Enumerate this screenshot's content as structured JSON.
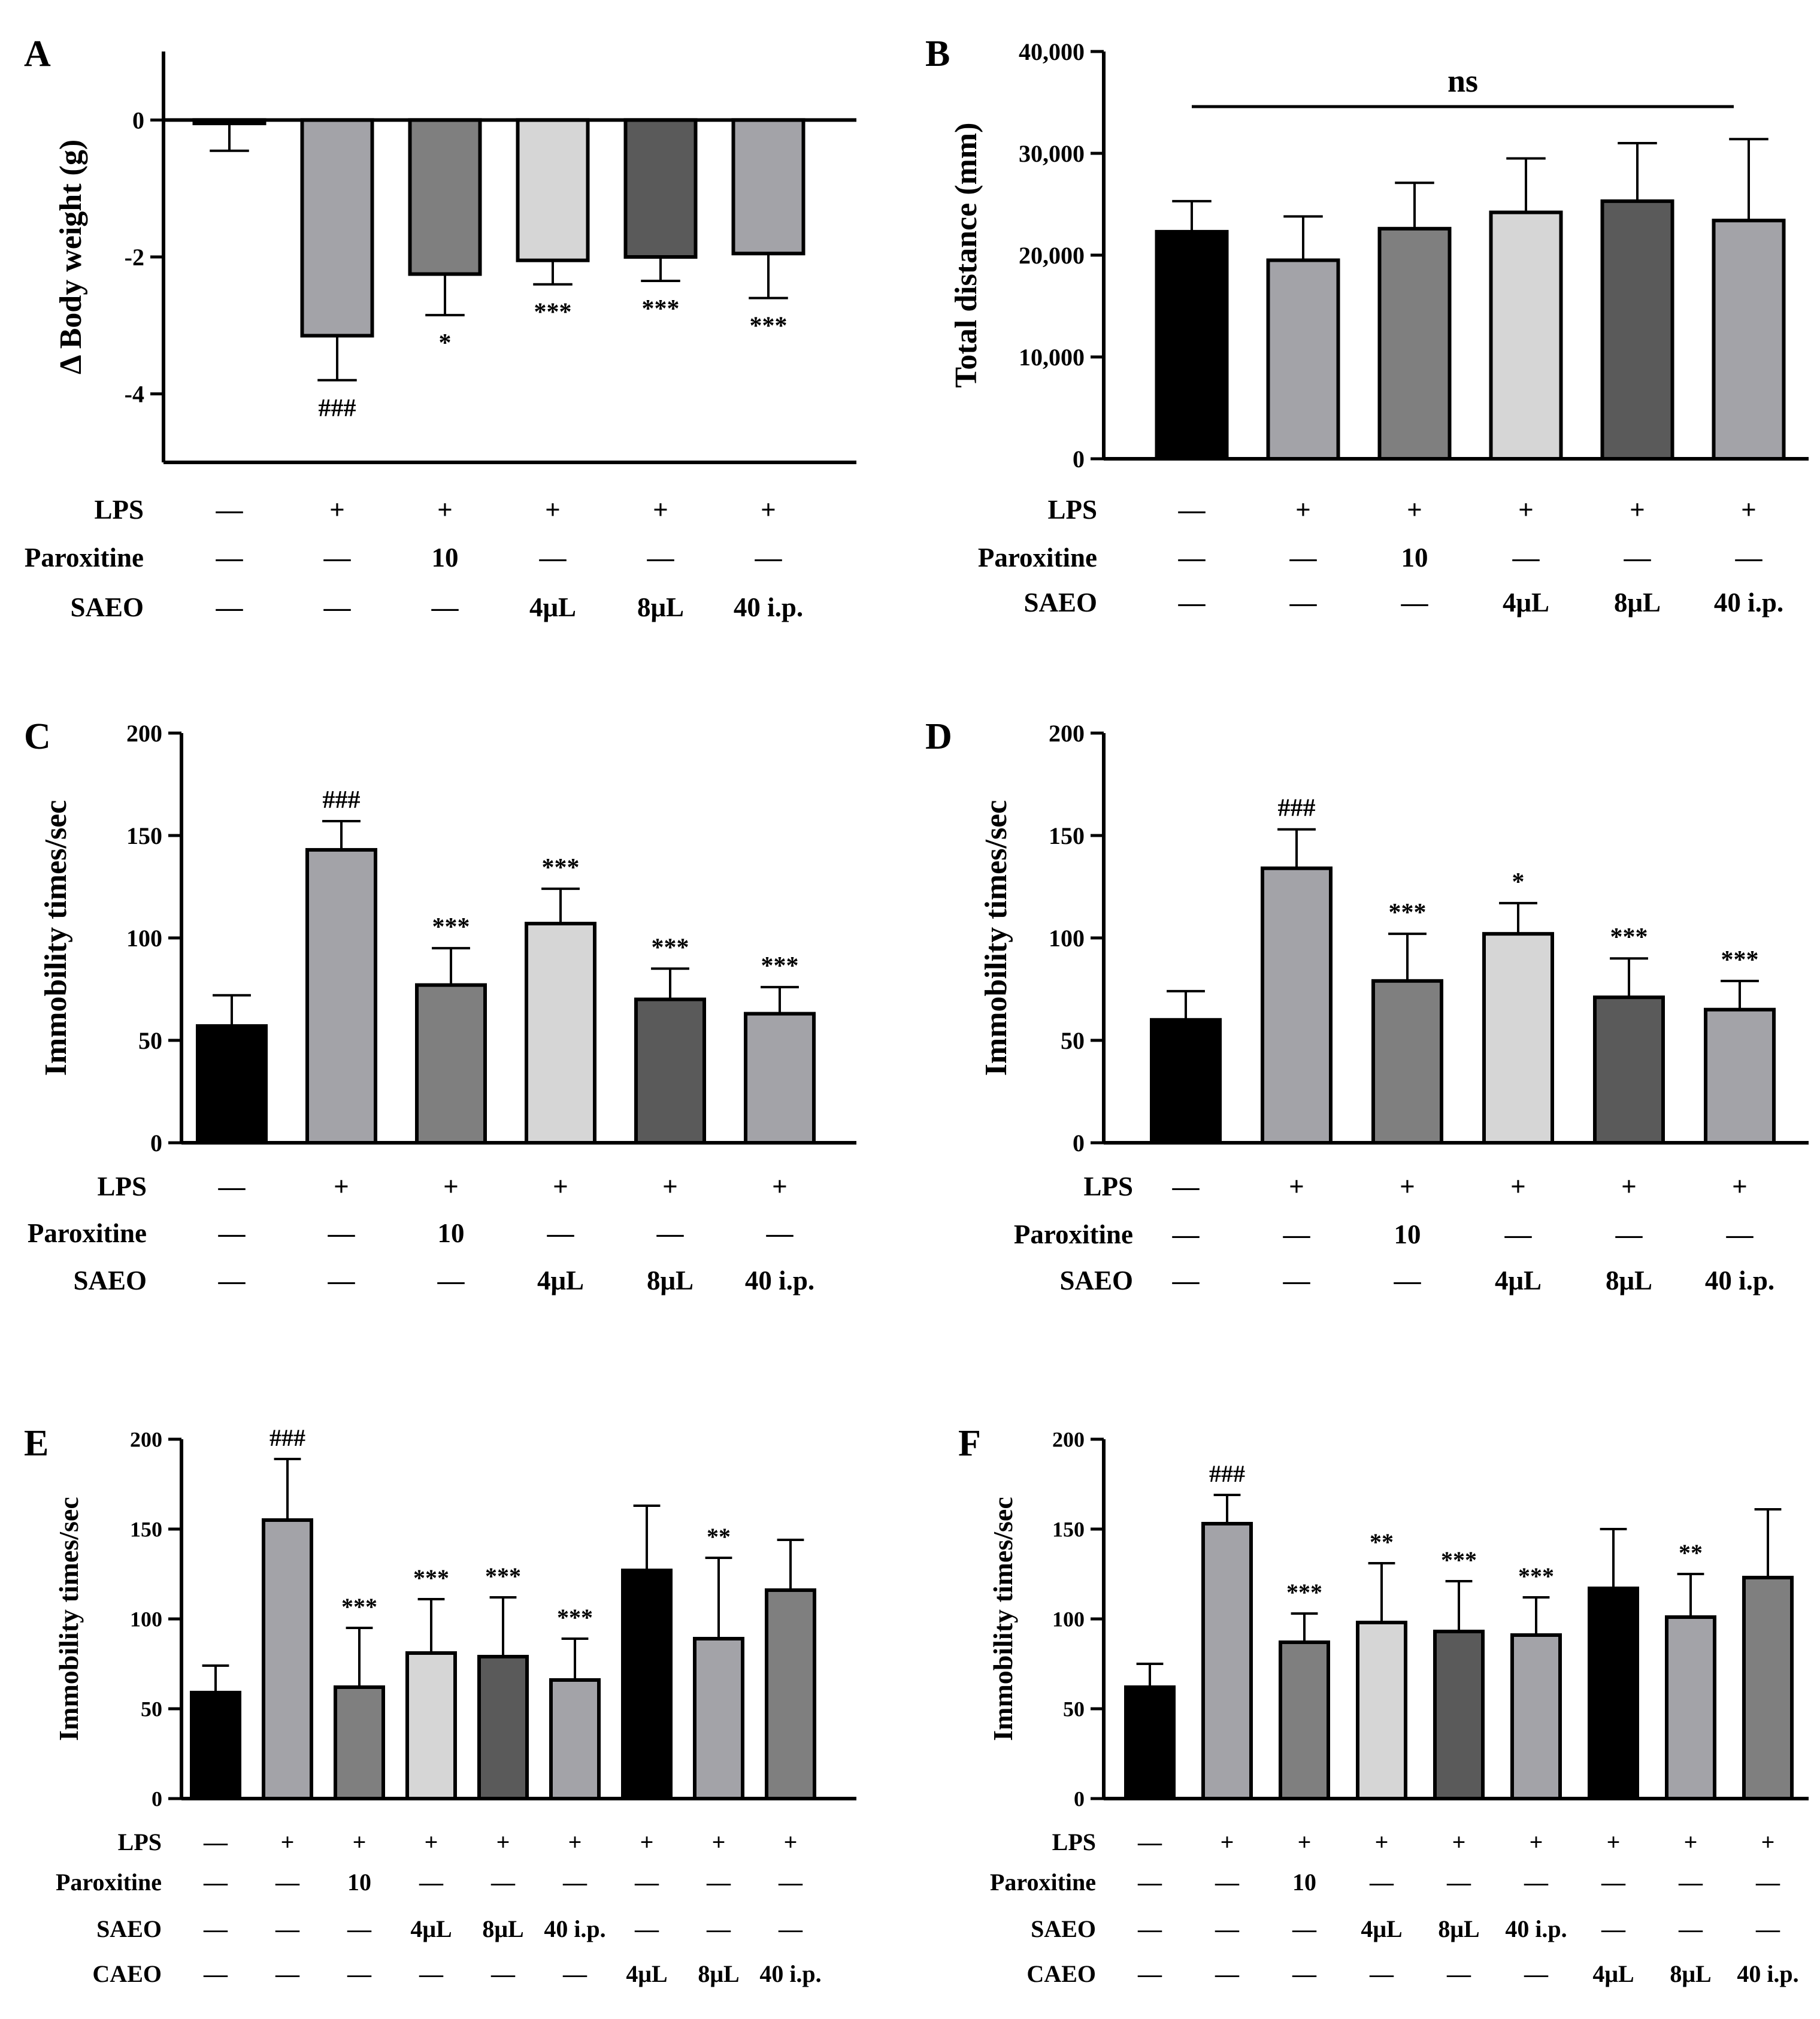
{
  "chart_data": [
    {
      "panel": "A",
      "type": "bar",
      "ylabel": "Δ Body weight (g)",
      "ylim": [
        -5,
        1
      ],
      "yticks": [
        0,
        -2,
        -4
      ],
      "ytick_labels": [
        "0",
        "-2",
        "-4"
      ],
      "values": [
        -0.05,
        -3.15,
        -2.25,
        -2.05,
        -2.0,
        -1.95
      ],
      "errors": [
        0.4,
        0.65,
        0.6,
        0.35,
        0.35,
        0.65
      ],
      "bar_colors": [
        "#000000",
        "#a3a3a8",
        "#7f7f7f",
        "#d6d6d6",
        "#5a5a5a",
        "#a3a3a8"
      ],
      "annotations": [
        "",
        "###",
        "*",
        "***",
        "***",
        "***"
      ],
      "rows": [
        {
          "label": "LPS",
          "cells": [
            "—",
            "+",
            "+",
            "+",
            "+",
            "+"
          ]
        },
        {
          "label": "Paroxitine",
          "cells": [
            "—",
            "—",
            "10",
            "—",
            "—",
            "—"
          ]
        },
        {
          "label": "SAEO",
          "cells": [
            "—",
            "—",
            "—",
            "4μL",
            "8μL",
            "40 i.p."
          ]
        }
      ]
    },
    {
      "panel": "B",
      "type": "bar",
      "ylabel": "Total distance (mm)",
      "ylim": [
        0,
        40000
      ],
      "yticks": [
        0,
        10000,
        20000,
        30000,
        40000
      ],
      "ytick_labels": [
        "0",
        "10,000",
        "20,000",
        "30,000",
        "40,000"
      ],
      "values": [
        22300,
        19500,
        22600,
        24200,
        25300,
        23400
      ],
      "errors": [
        3000,
        4300,
        4500,
        5300,
        5700,
        8000
      ],
      "bar_colors": [
        "#000000",
        "#a3a3a8",
        "#7f7f7f",
        "#d6d6d6",
        "#5a5a5a",
        "#a3a3a8"
      ],
      "annotations": [
        "",
        "",
        "",
        "",
        "",
        ""
      ],
      "bracket_label": "ns",
      "rows": [
        {
          "label": "LPS",
          "cells": [
            "—",
            "+",
            "+",
            "+",
            "+",
            "+"
          ]
        },
        {
          "label": "Paroxitine",
          "cells": [
            "—",
            "—",
            "10",
            "—",
            "—",
            "—"
          ]
        },
        {
          "label": "SAEO",
          "cells": [
            "—",
            "—",
            "—",
            "4μL",
            "8μL",
            "40 i.p."
          ]
        }
      ]
    },
    {
      "panel": "C",
      "type": "bar",
      "ylabel": "Immobility times/sec",
      "ylim": [
        0,
        200
      ],
      "yticks": [
        0,
        50,
        100,
        150,
        200
      ],
      "ytick_labels": [
        "0",
        "50",
        "100",
        "150",
        "200"
      ],
      "values": [
        57,
        143,
        77,
        107,
        70,
        63
      ],
      "errors": [
        15,
        14,
        18,
        17,
        15,
        13
      ],
      "bar_colors": [
        "#000000",
        "#a3a3a8",
        "#7f7f7f",
        "#d6d6d6",
        "#5a5a5a",
        "#a3a3a8"
      ],
      "annotations": [
        "",
        "###",
        "***",
        "***",
        "***",
        "***"
      ],
      "rows": [
        {
          "label": "LPS",
          "cells": [
            "—",
            "+",
            "+",
            "+",
            "+",
            "+"
          ]
        },
        {
          "label": "Paroxitine",
          "cells": [
            "—",
            "—",
            "10",
            "—",
            "—",
            "—"
          ]
        },
        {
          "label": "SAEO",
          "cells": [
            "—",
            "—",
            "—",
            "4μL",
            "8μL",
            "40 i.p."
          ]
        }
      ]
    },
    {
      "panel": "D",
      "type": "bar",
      "ylabel": "Immobility times/sec",
      "ylim": [
        0,
        200
      ],
      "yticks": [
        0,
        50,
        100,
        150,
        200
      ],
      "ytick_labels": [
        "0",
        "50",
        "100",
        "150",
        "200"
      ],
      "values": [
        60,
        134,
        79,
        102,
        71,
        65
      ],
      "errors": [
        14,
        19,
        23,
        15,
        19,
        14
      ],
      "bar_colors": [
        "#000000",
        "#a3a3a8",
        "#7f7f7f",
        "#d6d6d6",
        "#5a5a5a",
        "#a3a3a8"
      ],
      "annotations": [
        "",
        "###",
        "***",
        "*",
        "***",
        "***"
      ],
      "rows": [
        {
          "label": "LPS",
          "cells": [
            "—",
            "+",
            "+",
            "+",
            "+",
            "+"
          ]
        },
        {
          "label": "Paroxitine",
          "cells": [
            "—",
            "—",
            "10",
            "—",
            "—",
            "—"
          ]
        },
        {
          "label": "SAEO",
          "cells": [
            "—",
            "—",
            "—",
            "4μL",
            "8μL",
            "40 i.p."
          ]
        }
      ]
    },
    {
      "panel": "E",
      "type": "bar",
      "ylabel": "Immobility times/sec",
      "ylim": [
        0,
        200
      ],
      "yticks": [
        0,
        50,
        100,
        150,
        200
      ],
      "ytick_labels": [
        "0",
        "50",
        "100",
        "150",
        "200"
      ],
      "values": [
        59,
        155,
        62,
        81,
        79,
        66,
        127,
        89,
        116
      ],
      "errors": [
        15,
        34,
        33,
        30,
        33,
        23,
        36,
        45,
        28
      ],
      "bar_colors": [
        "#000000",
        "#a3a3a8",
        "#7f7f7f",
        "#d6d6d6",
        "#5a5a5a",
        "#a3a3a8",
        "#000000",
        "#a3a3a8",
        "#7f7f7f"
      ],
      "annotations": [
        "",
        "###",
        "***",
        "***",
        "***",
        "***",
        "",
        "**",
        ""
      ],
      "rows": [
        {
          "label": "LPS",
          "cells": [
            "—",
            "+",
            "+",
            "+",
            "+",
            "+",
            "+",
            "+",
            "+"
          ]
        },
        {
          "label": "Paroxitine",
          "cells": [
            "—",
            "—",
            "10",
            "—",
            "—",
            "—",
            "—",
            "—",
            "—"
          ]
        },
        {
          "label": "SAEO",
          "cells": [
            "—",
            "—",
            "—",
            "4μL",
            "8μL",
            "40 i.p.",
            "—",
            "—",
            "—"
          ]
        },
        {
          "label": "CAEO",
          "cells": [
            "—",
            "—",
            "—",
            "—",
            "—",
            "—",
            "4μL",
            "8μL",
            "40 i.p."
          ]
        }
      ]
    },
    {
      "panel": "F",
      "type": "bar",
      "ylabel": "Immobility times/sec",
      "ylim": [
        0,
        200
      ],
      "yticks": [
        0,
        50,
        100,
        150,
        200
      ],
      "ytick_labels": [
        "0",
        "50",
        "100",
        "150",
        "200"
      ],
      "values": [
        62,
        153,
        87,
        98,
        93,
        91,
        117,
        101,
        123
      ],
      "errors": [
        13,
        16,
        16,
        33,
        28,
        21,
        33,
        24,
        38
      ],
      "bar_colors": [
        "#000000",
        "#a3a3a8",
        "#7f7f7f",
        "#d6d6d6",
        "#5a5a5a",
        "#a3a3a8",
        "#000000",
        "#a3a3a8",
        "#7f7f7f"
      ],
      "annotations": [
        "",
        "###",
        "***",
        "**",
        "***",
        "***",
        "",
        "**",
        ""
      ],
      "rows": [
        {
          "label": "LPS",
          "cells": [
            "—",
            "+",
            "+",
            "+",
            "+",
            "+",
            "+",
            "+",
            "+"
          ]
        },
        {
          "label": "Paroxitine",
          "cells": [
            "—",
            "—",
            "10",
            "—",
            "—",
            "—",
            "—",
            "—",
            "—"
          ]
        },
        {
          "label": "SAEO",
          "cells": [
            "—",
            "—",
            "—",
            "4μL",
            "8μL",
            "40 i.p.",
            "—",
            "—",
            "—"
          ]
        },
        {
          "label": "CAEO",
          "cells": [
            "—",
            "—",
            "—",
            "—",
            "—",
            "—",
            "4μL",
            "8μL",
            "40 i.p."
          ]
        }
      ]
    }
  ]
}
